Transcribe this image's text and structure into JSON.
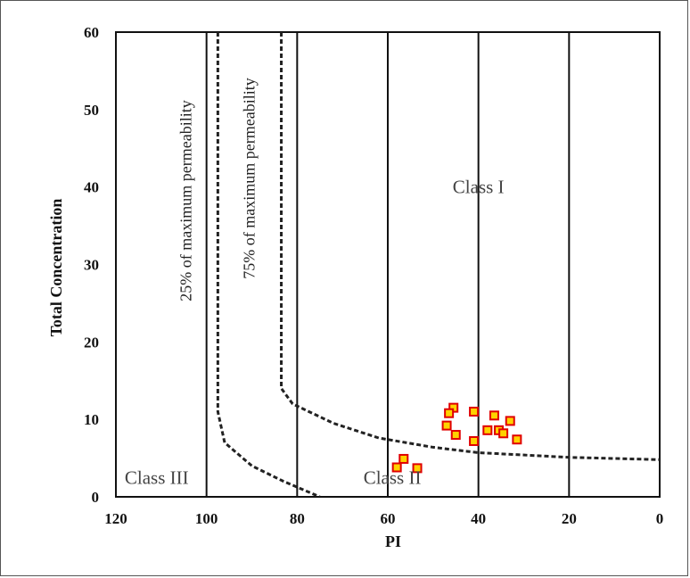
{
  "chart_data": {
    "type": "scatter",
    "title": "",
    "xlabel": "PI",
    "ylabel": "Total Concentration",
    "xlim": [
      120,
      0
    ],
    "ylim": [
      0,
      60
    ],
    "x_ticks": [
      120,
      100,
      80,
      60,
      40,
      20,
      0
    ],
    "y_ticks": [
      0,
      10,
      20,
      30,
      40,
      50,
      60
    ],
    "x_reversed": true,
    "vertical_gridlines": [
      100,
      80,
      60,
      40,
      20
    ],
    "grid": true,
    "legend": "none",
    "marker": {
      "shape": "square",
      "fill": "#ffd200",
      "stroke": "#e00000"
    },
    "series": [
      {
        "points": [
          {
            "x": 45.5,
            "y": 11.5
          },
          {
            "x": 46.5,
            "y": 10.8
          },
          {
            "x": 47,
            "y": 9.2
          },
          {
            "x": 45,
            "y": 8.0
          },
          {
            "x": 41,
            "y": 11.0
          },
          {
            "x": 41,
            "y": 7.2
          },
          {
            "x": 36.5,
            "y": 10.5
          },
          {
            "x": 33,
            "y": 9.8
          },
          {
            "x": 38,
            "y": 8.6
          },
          {
            "x": 35.5,
            "y": 8.6
          },
          {
            "x": 34.5,
            "y": 8.2
          },
          {
            "x": 31.5,
            "y": 7.4
          },
          {
            "x": 56.5,
            "y": 4.9
          },
          {
            "x": 58,
            "y": 3.8
          },
          {
            "x": 53.5,
            "y": 3.7
          }
        ]
      }
    ],
    "curves": [
      {
        "label": "25% of maximum permeability",
        "style": "dotted",
        "points": [
          [
            97.5,
            60
          ],
          [
            97.5,
            11
          ],
          [
            96,
            7
          ],
          [
            90,
            4
          ],
          [
            83,
            2
          ],
          [
            75,
            0
          ]
        ]
      },
      {
        "label": "75% of maximum permeability",
        "style": "dotted",
        "points": [
          [
            83.5,
            60
          ],
          [
            83.5,
            14
          ],
          [
            81,
            12
          ],
          [
            72,
            9.5
          ],
          [
            62,
            7.6
          ],
          [
            50,
            6.4
          ],
          [
            40,
            5.7
          ],
          [
            20,
            5.1
          ],
          [
            0,
            4.8
          ]
        ]
      }
    ],
    "annotations": [
      {
        "text": "Class I",
        "x": 40,
        "y": 40
      },
      {
        "text": "Class II",
        "x": 59,
        "y": 2.5
      },
      {
        "text": "Class III",
        "x": 111,
        "y": 2.5
      }
    ]
  }
}
